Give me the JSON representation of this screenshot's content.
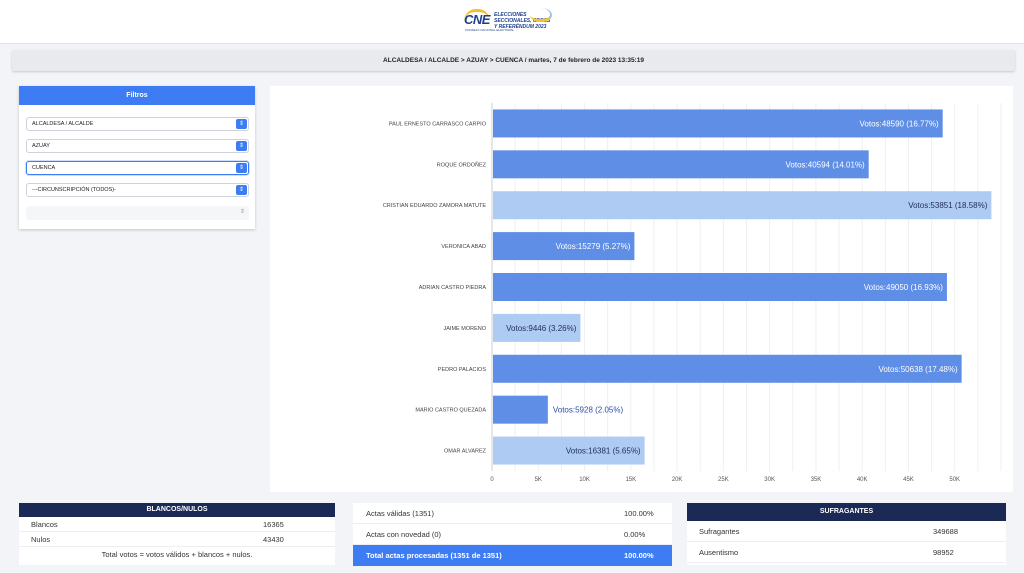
{
  "header": {
    "logo_brand": "CNE",
    "logo_subtitle": "CONSEJO NACIONAL ELECTORAL",
    "logo_caption": "ELECCIONES SECCIONALES, CPCCS Y REFERÉNDUM 2023"
  },
  "breadcrumb": "ALCALDESA / ALCALDE > AZUAY > CUENCA / martes, 7 de febrero de 2023 13:35:19",
  "filters": {
    "title": "Filtros",
    "dignidad": "ALCALDESA / ALCALDE",
    "provincia": "AZUAY",
    "canton": "CUENCA",
    "circunscripcion": "---CIRCUNSCRIPCIÓN (TODOS)-",
    "parroquia": ""
  },
  "chart_data": {
    "type": "bar",
    "orientation": "horizontal",
    "categories": [
      "PAUL ERNESTO CARRASCO CARPIO",
      "ROQUE ORDOÑEZ",
      "CRISTIAN EDUARDO ZAMORA MATUTE",
      "VERONICA ABAD",
      "ADRIAN CASTRO PIEDRA",
      "JAIME MORENO",
      "PEDRO PALACIOS",
      "MARIO CASTRO QUEZADA",
      "OMAR ALVAREZ"
    ],
    "values": [
      48590,
      40594,
      53851,
      15279,
      49050,
      9446,
      50638,
      5928,
      16381
    ],
    "labels": [
      "Votos:48590 (16.77%)",
      "Votos:40594 (14.01%)",
      "Votos:53851 (18.58%)",
      "Votos:15279 (5.27%)",
      "Votos:49050 (16.93%)",
      "Votos:9446 (3.26%)",
      "Votos:50638 (17.48%)",
      "Votos:5928 (2.05%)",
      "Votos:16381 (5.65%)"
    ],
    "bar_colors": [
      "#5e8ee6",
      "#5e8ee6",
      "#aecbf4",
      "#5e8ee6",
      "#5e8ee6",
      "#aecbf4",
      "#5e8ee6",
      "#5e8ee6",
      "#aecbf4"
    ],
    "xlim": [
      0,
      55000
    ],
    "xticks": [
      0,
      5000,
      10000,
      15000,
      20000,
      25000,
      30000,
      35000,
      40000,
      45000,
      50000
    ],
    "xtick_labels": [
      "0",
      "5K",
      "10K",
      "15K",
      "20K",
      "25K",
      "30K",
      "35K",
      "40K",
      "45K",
      "50K"
    ],
    "grid": true,
    "title": "",
    "xlabel": "",
    "ylabel": ""
  },
  "blancos_nulos": {
    "title": "BLANCOS/NULOS",
    "rows": [
      {
        "label": "Blancos",
        "value": "16365"
      },
      {
        "label": "Nulos",
        "value": "43430"
      }
    ],
    "note": "Total votos = votos válidos + blancos + nulos."
  },
  "actas": {
    "rows": [
      {
        "label": "Actas válidas (1351)",
        "value": "100.00%"
      },
      {
        "label": "Actas con novedad (0)",
        "value": "0.00%"
      }
    ],
    "total": {
      "label": "Total actas procesadas (1351 de 1351)",
      "value": "100.00%"
    }
  },
  "sufragantes": {
    "title": "SUFRAGANTES",
    "rows": [
      {
        "label": "Sufragantes",
        "value": "349688"
      },
      {
        "label": "Ausentismo",
        "value": "98952"
      }
    ]
  },
  "colors": {
    "primary": "#3d7cf2",
    "navy": "#1b2955",
    "bar_dark": "#5e8ee6",
    "bar_light": "#aecbf4"
  }
}
